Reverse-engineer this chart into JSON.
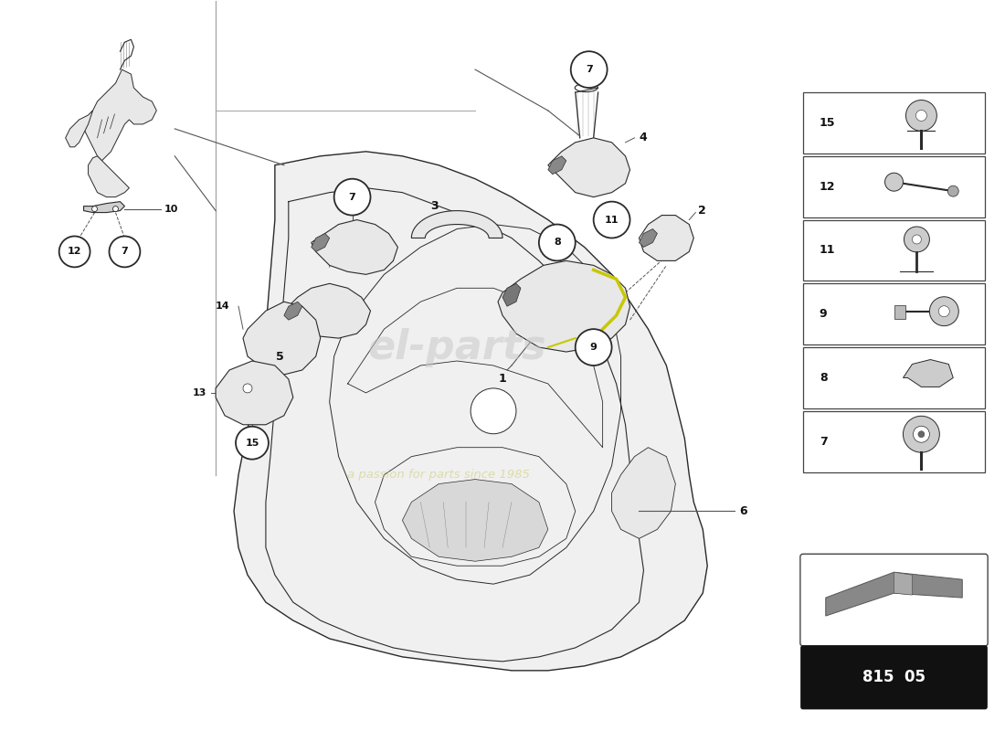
{
  "bg_color": "#ffffff",
  "fig_width": 11.0,
  "fig_height": 8.0,
  "dpi": 100,
  "lc": "#2a2a2a",
  "cc": "#555555",
  "highlight_yellow": "#c8c800",
  "fill_light": "#e8e8e8",
  "fill_med": "#d0d0d0",
  "page_code": "815 05",
  "watermark1_text": "el-parts",
  "watermark1_color": "#c8c8c8",
  "watermark1_alpha": 0.55,
  "watermark2_text": "a passion for parts since 1985",
  "watermark2_color": "#d4d488",
  "watermark2_alpha": 0.7,
  "sep_line_color": "#aaaaaa",
  "legend_items": [
    "15",
    "12",
    "11",
    "9",
    "8",
    "7"
  ]
}
